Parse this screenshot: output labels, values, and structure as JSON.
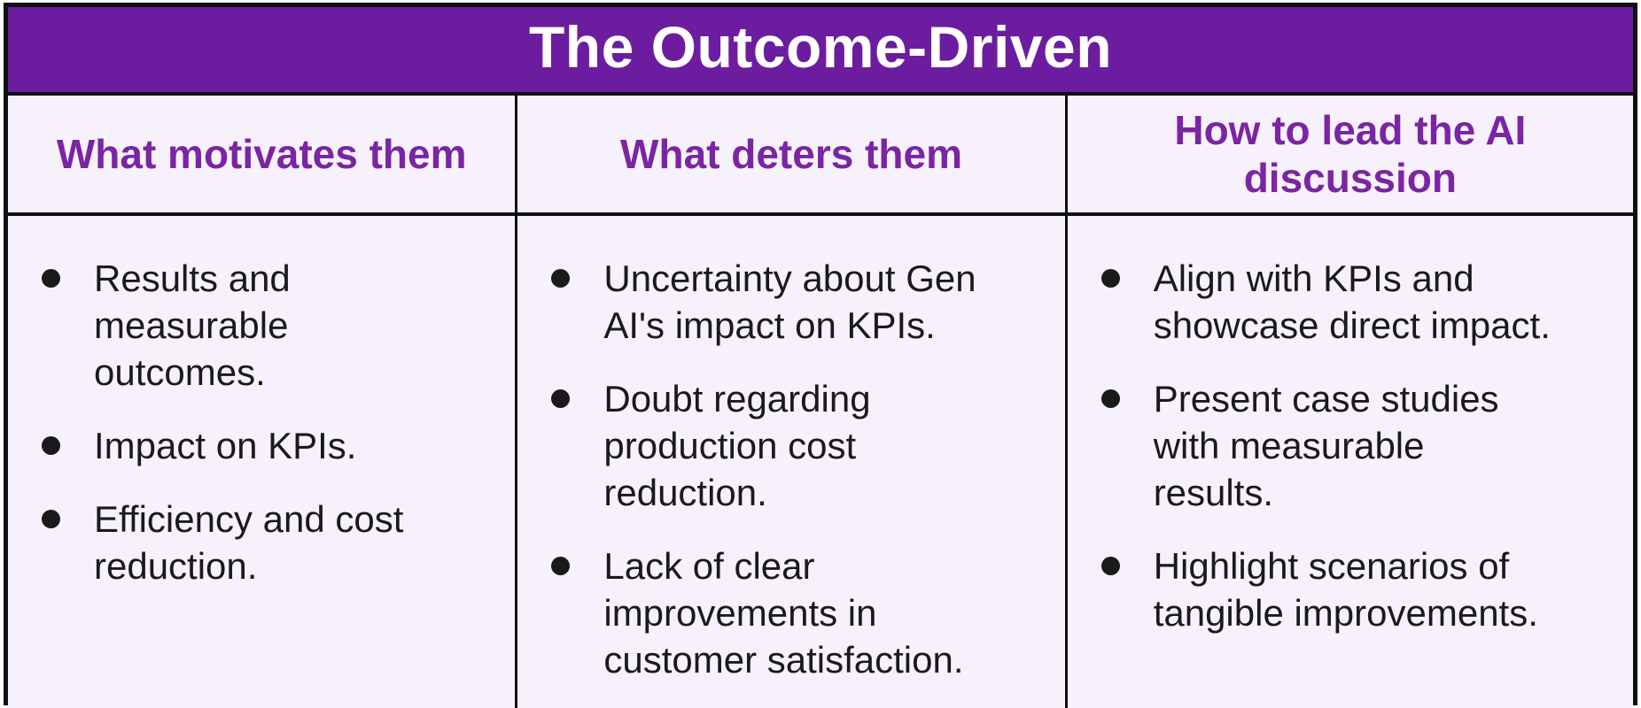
{
  "table": {
    "title": "The Outcome-Driven",
    "columns": [
      {
        "header": "What motivates them",
        "bullets": [
          "Results and\nmeasurable\noutcomes.",
          "Impact on KPIs.",
          "Efficiency and cost\nreduction."
        ]
      },
      {
        "header": "What deters them",
        "bullets": [
          "Uncertainty about Gen\nAI's impact on KPIs.",
          "Doubt regarding\nproduction cost\nreduction.",
          "Lack of clear\nimprovements in\ncustomer satisfaction."
        ]
      },
      {
        "header": "How to lead the AI\ndiscussion",
        "bullets": [
          "Align with KPIs and\nshowcase direct impact.",
          "Present case studies\nwith measurable\nresults.",
          "Highlight scenarios of\ntangible improvements."
        ]
      }
    ],
    "colors": {
      "title_bg": "#6C1D9F",
      "title_text": "#FFFFFF",
      "header_text": "#7B24A4",
      "cell_bg": "#F6F1FA",
      "border": "#101010",
      "body_text": "#1A1A1A",
      "page_bg": "#FFFFFF"
    }
  }
}
